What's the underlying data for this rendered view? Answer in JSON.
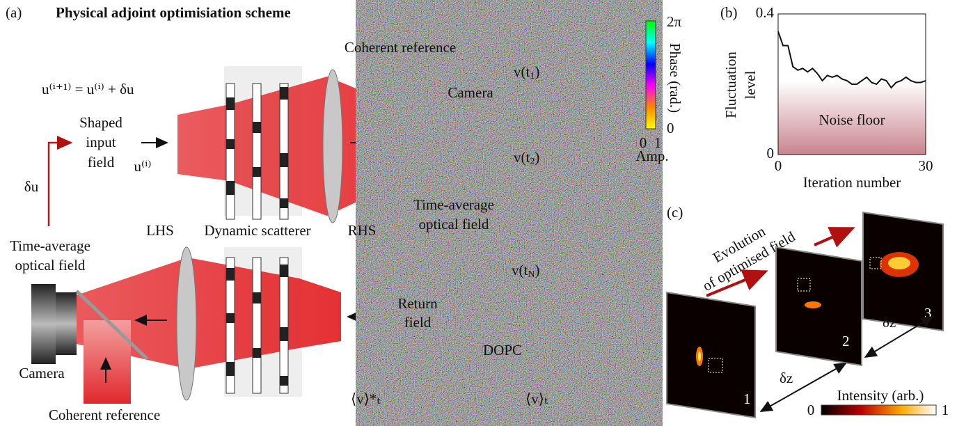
{
  "panel_a": {
    "label": "(a)",
    "title": "Physical adjoint optimisiation scheme",
    "coherent_reference_top": "Coherent reference",
    "update_rule": "u⁽ⁱ⁺¹⁾ = u⁽ⁱ⁾ + δu",
    "camera_top": "Camera",
    "shaped_input": [
      "Shaped",
      "input",
      "field"
    ],
    "input_symbol": "u⁽ⁱ⁾",
    "delta_u": "δu",
    "lhs": "LHS",
    "scatterer": "Dynamic scatterer",
    "rhs": "RHS",
    "time_average_right": [
      "Time-average",
      "optical field"
    ],
    "time_average_left": [
      "Time-average",
      "optical field"
    ],
    "return_field": [
      "Return",
      "field"
    ],
    "dopc": "DOPC",
    "camera_bottom": "Camera",
    "coherent_reference_bottom": "Coherent reference",
    "conjugate_symbol": "⟨v⟩*ₜ",
    "mean_symbol": "⟨v⟩ₜ",
    "frames": [
      {
        "pre": "v(t",
        "sub": "1",
        "post": ")"
      },
      {
        "pre": "v(t",
        "sub": "2",
        "post": ")"
      },
      {
        "pre": "v(t",
        "sub": "N",
        "post": ")"
      }
    ],
    "phase_bar": {
      "top": "2π",
      "bottom": "0",
      "label": "Phase (rad.)",
      "amp_min": "0",
      "amp_max": "1",
      "amp_label": "Amp."
    }
  },
  "chart_data": {
    "type": "line",
    "label": "(b)",
    "y_label": [
      "Fluctuation",
      "level"
    ],
    "x_label": "Iteration number",
    "annotation": "Noise floor",
    "x": [
      0,
      1,
      2,
      3,
      4,
      5,
      6,
      7,
      8,
      9,
      10,
      11,
      12,
      13,
      14,
      15,
      16,
      17,
      18,
      19,
      20,
      21,
      22,
      23,
      24,
      25,
      26,
      27,
      28,
      29,
      30
    ],
    "values": [
      0.35,
      0.31,
      0.31,
      0.25,
      0.24,
      0.245,
      0.235,
      0.245,
      0.23,
      0.21,
      0.225,
      0.22,
      0.225,
      0.215,
      0.21,
      0.2,
      0.2,
      0.21,
      0.22,
      0.205,
      0.2,
      0.215,
      0.21,
      0.19,
      0.205,
      0.21,
      0.22,
      0.21,
      0.205,
      0.205,
      0.21
    ],
    "color": "#111111",
    "xlim": [
      0,
      30
    ],
    "ylim": [
      0,
      0.4
    ],
    "xticks": [
      0,
      30
    ],
    "yticks": [
      0,
      0.4
    ]
  },
  "panel_c": {
    "label": "(c)",
    "evolution": [
      "Evolution",
      "of optimised field"
    ],
    "frame_numbers": [
      "1",
      "2",
      "3"
    ],
    "dz": [
      "δz",
      "δz"
    ],
    "intensity_bar": {
      "label": "Intensity (arb.)",
      "min": "0",
      "max": "1"
    }
  }
}
